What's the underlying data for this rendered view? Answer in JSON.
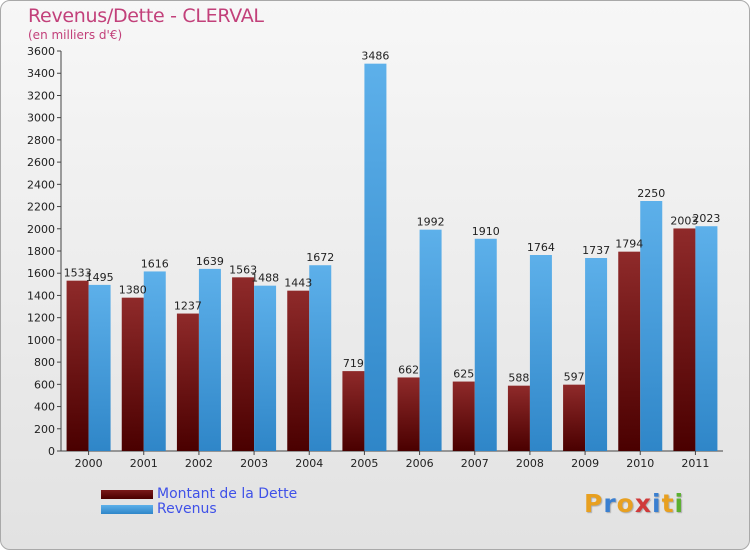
{
  "header": {
    "title": "Revenus/Dette - CLERVAL",
    "subtitle": "(en milliers d'€)"
  },
  "legend": {
    "debt_label": "Montant de la Dette",
    "revenue_label": "Revenus"
  },
  "logo": {
    "text": "Proxiti"
  },
  "colors": {
    "debt": "#7a1a1a",
    "revenue": "#4aa3e3",
    "title": "#c2407a",
    "legend_text": "#3f51e8"
  },
  "chart_data": {
    "type": "bar",
    "categories": [
      "2000",
      "2001",
      "2002",
      "2003",
      "2004",
      "2005",
      "2006",
      "2007",
      "2008",
      "2009",
      "2010",
      "2011"
    ],
    "series": [
      {
        "name": "Montant de la Dette",
        "values": [
          1533,
          1380,
          1237,
          1563,
          1443,
          719,
          662,
          625,
          588,
          597,
          1794,
          2003
        ]
      },
      {
        "name": "Revenus",
        "values": [
          1495,
          1616,
          1639,
          1488,
          1672,
          3486,
          1992,
          1910,
          1764,
          1737,
          2250,
          2023
        ]
      }
    ],
    "yticks": [
      "0",
      "200",
      "400",
      "600",
      "800",
      "1000",
      "1200",
      "1400",
      "1600",
      "1800",
      "2000",
      "2200",
      "2400",
      "2600",
      "2800",
      "3000",
      "3200",
      "3400",
      "3600"
    ],
    "ylim": [
      0,
      3600
    ],
    "title": "Revenus/Dette - CLERVAL",
    "ylabel": "(en milliers d'€)",
    "grid": false,
    "legend_position": "bottom-left"
  }
}
